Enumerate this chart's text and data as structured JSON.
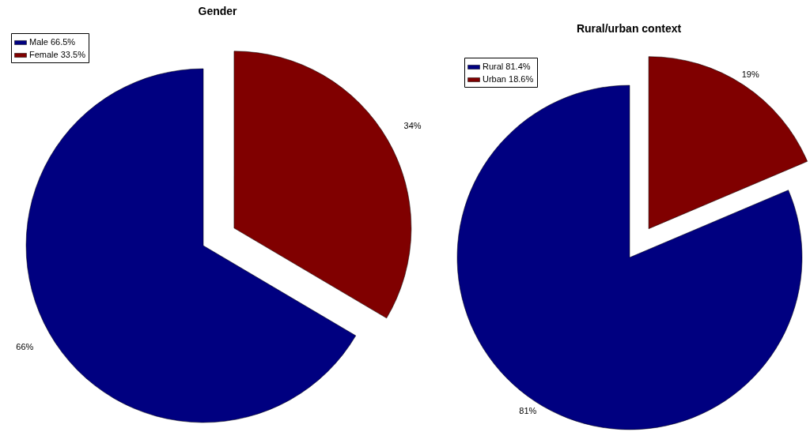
{
  "chart_data": [
    {
      "type": "pie",
      "title": "Gender",
      "categories": [
        "Male 66.5%",
        "Female 33.5%"
      ],
      "values": [
        66.5,
        33.5
      ],
      "colors": [
        "#000080",
        "#800000"
      ],
      "value_labels": [
        "66%",
        "34%"
      ],
      "legend": "top left"
    },
    {
      "type": "pie",
      "title": "Rural/urban context",
      "categories": [
        "Rural 81.4%",
        "Urban 18.6%"
      ],
      "values": [
        81.4,
        18.6
      ],
      "colors": [
        "#000080",
        "#800000"
      ],
      "value_labels": [
        "81%",
        "19%"
      ],
      "legend": "top left"
    }
  ]
}
